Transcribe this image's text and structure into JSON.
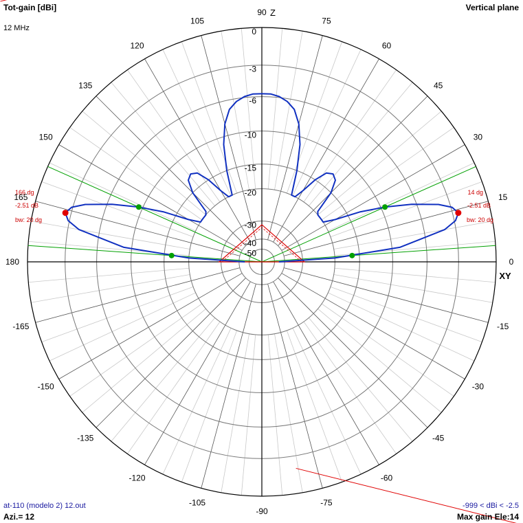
{
  "header": {
    "title": "Tot-gain [dBi]",
    "frequency": "12 MHz",
    "plane": "Vertical plane"
  },
  "footer": {
    "file": "at-110 (modelo 2) 12.out",
    "azimuth": "Azi.= 12",
    "range": "-999 < dBi < -2.5",
    "max_gain": "Max gain Ele:14"
  },
  "axis_labels": {
    "vertical": "Z",
    "horizontal": "XY"
  },
  "colors": {
    "pattern": "#1030c0",
    "grid": "#000000",
    "beamwidth": "#00a000",
    "marker": "#e00000",
    "annotation": "#cc0000",
    "footer_text": "#1a1aa0"
  },
  "chart_data": {
    "type": "polar",
    "title": "Tot-gain [dBi]",
    "plane": "Vertical plane",
    "frequency": "12 MHz",
    "angle_ticks": [
      90,
      75,
      60,
      45,
      30,
      15,
      0,
      -15,
      -30,
      -45,
      -60,
      -75,
      -90,
      -105,
      -120,
      -135,
      -150,
      -165,
      180,
      165,
      150,
      135,
      120,
      105
    ],
    "radial_ticks": [
      "0",
      "-3",
      "-6",
      "-10",
      "-15",
      "-20",
      "-30",
      "-40",
      "-50"
    ],
    "radial_values": [
      0,
      -3,
      -6,
      -10,
      -15,
      -20,
      -30,
      -40,
      -50
    ],
    "grid": true,
    "series": [
      {
        "elevation_deg": [
          0,
          3,
          6,
          10,
          12,
          14,
          16,
          18,
          21,
          24,
          27,
          30,
          33,
          36,
          40,
          42,
          45,
          48,
          51,
          54,
          57,
          60,
          63,
          66,
          69,
          72,
          75,
          78,
          81,
          84,
          87,
          90
        ],
        "gain_dbi": [
          -45,
          -20,
          -9,
          -4,
          -2.9,
          -2.5,
          -2.9,
          -4,
          -6.5,
          -9.5,
          -13,
          -17.5,
          -20,
          -20,
          -20,
          -19.5,
          -15,
          -13,
          -12.5,
          -13,
          -15,
          -18,
          -20,
          -20,
          -15,
          -11,
          -8.5,
          -7,
          -6.3,
          -5.9,
          -5.7,
          -5.7
        ]
      }
    ],
    "max_gain": {
      "elevation_deg": 14,
      "gain_dbi": -2.51,
      "beamwidth_deg": 20
    },
    "annotations": {
      "right": {
        "angle": "14 dg",
        "gain": "-2.51 dB",
        "bw": "bw: 20 dg"
      },
      "left": {
        "angle": "166 dg",
        "gain": "-2.51 dB",
        "bw": "bw: 20 dg"
      }
    }
  }
}
